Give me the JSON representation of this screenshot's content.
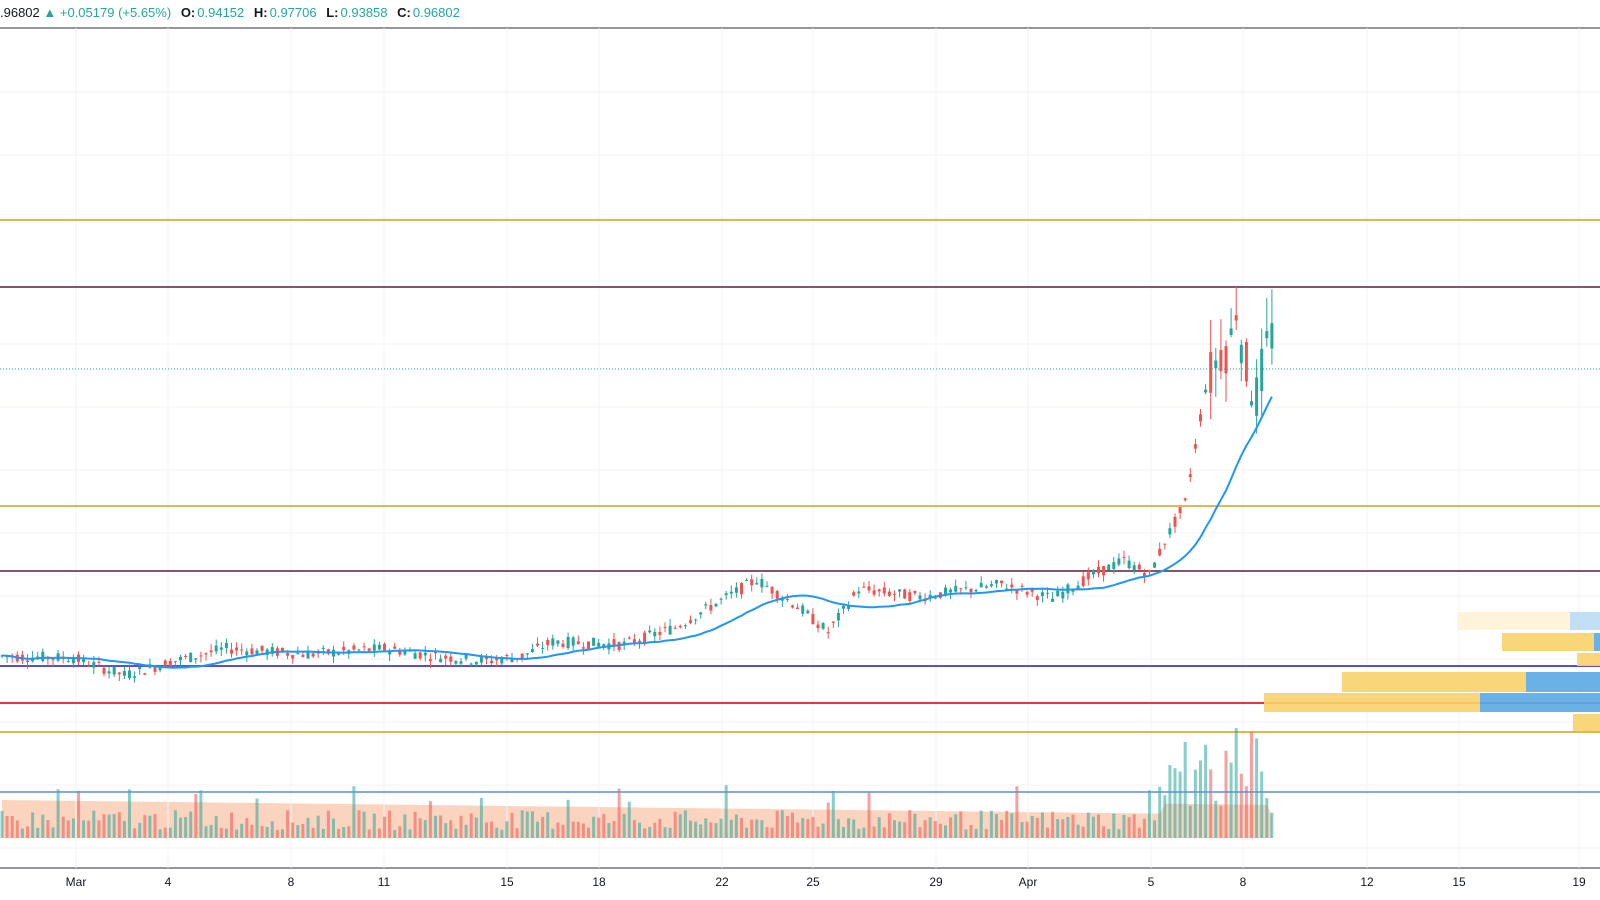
{
  "legend": {
    "close_prefix": ".96802",
    "change": "▲ +0.05179 (+5.65%)",
    "o_label": "O:",
    "o_value": "0.94152",
    "h_label": "H:",
    "h_value": "0.97706",
    "l_label": "L:",
    "l_value": "0.93858",
    "c_label": "C:",
    "c_value": "0.96802"
  },
  "colors": {
    "up": "#26a69a",
    "down": "#ef5350",
    "ma": "#2196f3",
    "orange_level": "#d4a017",
    "maroon_level": "#5d1e3a",
    "purple_level": "#5b4fcf",
    "red_level": "#e53935",
    "volume_ma_line": "#5c8fd6",
    "vp_light": "#fff3d6",
    "vp_orange": "#f9d26b",
    "vp_blue": "#5aa9e6",
    "vp_lightblue": "#bcdcf5"
  },
  "chart_data": {
    "type": "candlestick",
    "title": "",
    "xlabel": "",
    "ylabel": "",
    "grid": true,
    "x_tick_labels": [
      "Mar",
      "4",
      "8",
      "11",
      "15",
      "18",
      "22",
      "25",
      "29",
      "Apr",
      "5",
      "8",
      "12",
      "15",
      "19"
    ],
    "last_candle": {
      "open": 0.94152,
      "high": 0.97706,
      "low": 0.93858,
      "close": 0.96802,
      "change": 0.05179,
      "change_pct": 5.65
    },
    "horizontal_levels": [
      "orange",
      "maroon",
      "orange",
      "maroon",
      "purple",
      "red",
      "orange"
    ],
    "moving_average": {
      "description": "smoothed close average"
    },
    "volume": {
      "shown": true,
      "volume_average_line": true
    },
    "volume_profile": {
      "shown": true,
      "placement": "right"
    }
  }
}
